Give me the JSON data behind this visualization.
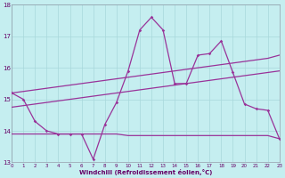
{
  "background_color": "#c5eef0",
  "grid_color": "#a8d8db",
  "line_color": "#993399",
  "xlim": [
    0,
    23
  ],
  "ylim": [
    13,
    18
  ],
  "yticks": [
    13,
    14,
    15,
    16,
    17,
    18
  ],
  "xticks": [
    0,
    1,
    2,
    3,
    4,
    5,
    6,
    7,
    8,
    9,
    10,
    11,
    12,
    13,
    14,
    15,
    16,
    17,
    18,
    19,
    20,
    21,
    22,
    23
  ],
  "xlabel": "Windchill (Refroidissement éolien,°C)",
  "line1_x": [
    0,
    1,
    2,
    3,
    4,
    5,
    6,
    7,
    8,
    9,
    10,
    11,
    12,
    13,
    14,
    15,
    16,
    17,
    18,
    19,
    20,
    21,
    22,
    23
  ],
  "line1_y": [
    15.2,
    15.0,
    14.3,
    14.0,
    13.9,
    13.9,
    13.9,
    13.1,
    14.2,
    14.9,
    15.9,
    17.2,
    17.6,
    17.2,
    15.5,
    15.5,
    16.4,
    16.45,
    16.85,
    15.85,
    14.85,
    14.7,
    14.65,
    13.75
  ],
  "line2_x": [
    0,
    1,
    2,
    3,
    4,
    5,
    6,
    7,
    8,
    9,
    10,
    11,
    12,
    13,
    14,
    15,
    16,
    17,
    18,
    19,
    20,
    21,
    22,
    23
  ],
  "line2_y": [
    15.2,
    15.25,
    15.3,
    15.35,
    15.4,
    15.45,
    15.5,
    15.55,
    15.6,
    15.65,
    15.7,
    15.75,
    15.8,
    15.85,
    15.9,
    15.95,
    16.0,
    16.05,
    16.1,
    16.15,
    16.2,
    16.25,
    16.3,
    16.4
  ],
  "line3_x": [
    0,
    1,
    2,
    3,
    4,
    5,
    6,
    7,
    8,
    9,
    10,
    11,
    12,
    13,
    14,
    15,
    16,
    17,
    18,
    19,
    20,
    21,
    22,
    23
  ],
  "line3_y": [
    14.75,
    14.8,
    14.85,
    14.9,
    14.95,
    15.0,
    15.05,
    15.1,
    15.15,
    15.2,
    15.25,
    15.3,
    15.35,
    15.4,
    15.45,
    15.5,
    15.55,
    15.6,
    15.65,
    15.7,
    15.75,
    15.8,
    15.85,
    15.9
  ],
  "line4_x": [
    0,
    1,
    2,
    3,
    4,
    5,
    6,
    7,
    8,
    9,
    10,
    11,
    12,
    13,
    14,
    15,
    16,
    17,
    18,
    19,
    20,
    21,
    22,
    23
  ],
  "line4_y": [
    13.9,
    13.9,
    13.9,
    13.9,
    13.9,
    13.9,
    13.9,
    13.9,
    13.9,
    13.9,
    13.85,
    13.85,
    13.85,
    13.85,
    13.85,
    13.85,
    13.85,
    13.85,
    13.85,
    13.85,
    13.85,
    13.85,
    13.85,
    13.75
  ]
}
